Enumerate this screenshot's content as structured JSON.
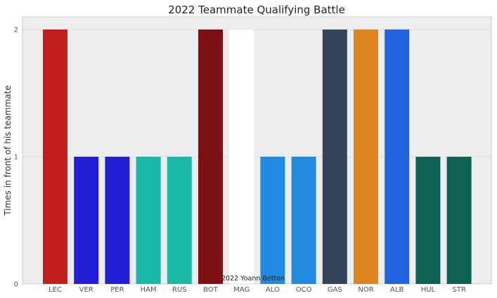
{
  "chart_data": {
    "type": "bar",
    "title": "2022 Teammate Qualifying Battle",
    "xlabel": "",
    "ylabel": "Times in front of his teammate",
    "categories": [
      "LEC",
      "VER",
      "PER",
      "HAM",
      "RUS",
      "BOT",
      "MAG",
      "ALO",
      "OCO",
      "GAS",
      "NOR",
      "ALB",
      "HUL",
      "STR"
    ],
    "values": [
      2,
      1,
      1,
      1,
      1,
      2,
      2,
      1,
      1,
      2,
      2,
      2,
      1,
      1
    ],
    "colors": [
      "#c31c1c",
      "#221ed6",
      "#221ed6",
      "#1ab8a9",
      "#1ab8a9",
      "#7b1114",
      "#ffffff",
      "#228ae0",
      "#228ae0",
      "#33445c",
      "#de851f",
      "#2263e0",
      "#0e6154",
      "#0e6154"
    ],
    "ylim": [
      0,
      2
    ],
    "yticks": [
      0,
      1,
      2
    ],
    "grid": true,
    "annotation": "2022 Yoann Betton",
    "background": "#ededed"
  }
}
